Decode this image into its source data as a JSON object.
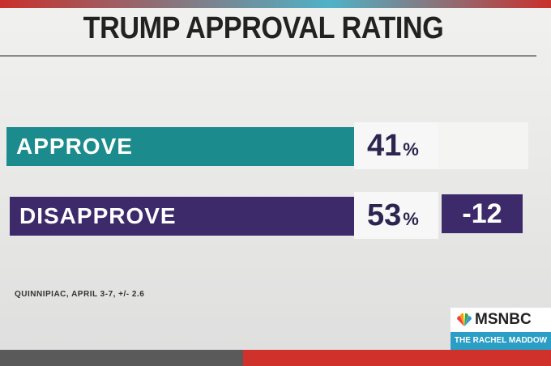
{
  "title": "TRUMP APPROVAL RATING",
  "rows": [
    {
      "label": "APPROVE",
      "value": 41,
      "unit": "%"
    },
    {
      "label": "DISAPPROVE",
      "value": 53,
      "unit": "%"
    }
  ],
  "net": -12,
  "source": "QUINNIPIAC, APRIL 3-7, +/- 2.6",
  "logo": {
    "network": "MSNBC",
    "show": "THE RACHEL MADDOW SHOW"
  }
}
